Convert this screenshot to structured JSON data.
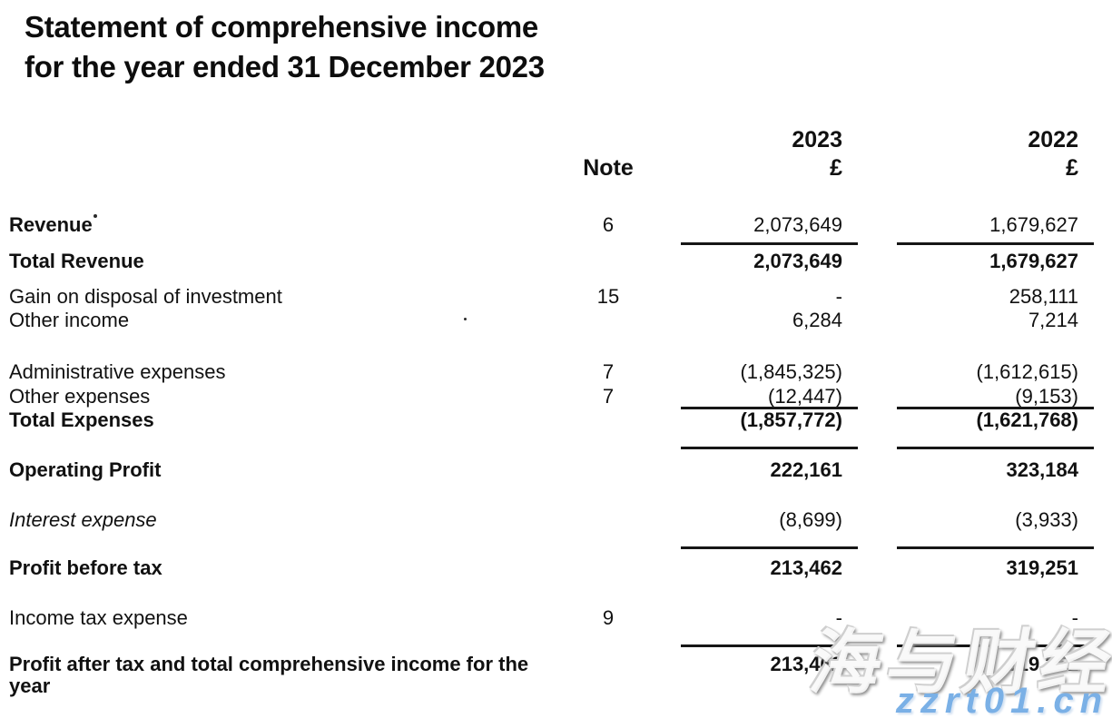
{
  "document": {
    "title_line1": "Statement of comprehensive income",
    "title_line2": "for the year ended 31 December 2023"
  },
  "table": {
    "headers": {
      "note": "Note",
      "year1": "2023",
      "year2": "2022",
      "currency1": "£",
      "currency2": "£"
    },
    "rows": [
      {
        "label": "Revenue",
        "note": "6",
        "y2023": "2,073,649",
        "y2022": "1,679,627"
      },
      {
        "label": "Total Revenue",
        "note": "",
        "y2023": "2,073,649",
        "y2022": "1,679,627"
      },
      {
        "label": "Gain on disposal of investment",
        "note": "15",
        "y2023": "-",
        "y2022": "258,111"
      },
      {
        "label": "Other income",
        "note": "",
        "y2023": "6,284",
        "y2022": "7,214"
      },
      {
        "label": "Administrative expenses",
        "note": "7",
        "y2023": "(1,845,325)",
        "y2022": "(1,612,615)"
      },
      {
        "label": "Other expenses",
        "note": "7",
        "y2023": "(12,447)",
        "y2022": "(9,153)"
      },
      {
        "label": "Total Expenses",
        "note": "",
        "y2023": "(1,857,772)",
        "y2022": "(1,621,768)"
      },
      {
        "label": "Operating Profit",
        "note": "",
        "y2023": "222,161",
        "y2022": "323,184"
      },
      {
        "label": "Interest expense",
        "note": "",
        "y2023": "(8,699)",
        "y2022": "(3,933)"
      },
      {
        "label": "Profit before tax",
        "note": "",
        "y2023": "213,462",
        "y2022": "319,251"
      },
      {
        "label": "Income tax expense",
        "note": "9",
        "y2023": "-",
        "y2022": "-"
      },
      {
        "label": "Profit after tax and total comprehensive income for the year",
        "note": "",
        "y2023": "213,462",
        "y2022": "319,251"
      }
    ]
  },
  "watermark": {
    "site_name": "海与财经",
    "site_url": "zzrt01.cn",
    "accent_color": "#7ab0e6"
  }
}
